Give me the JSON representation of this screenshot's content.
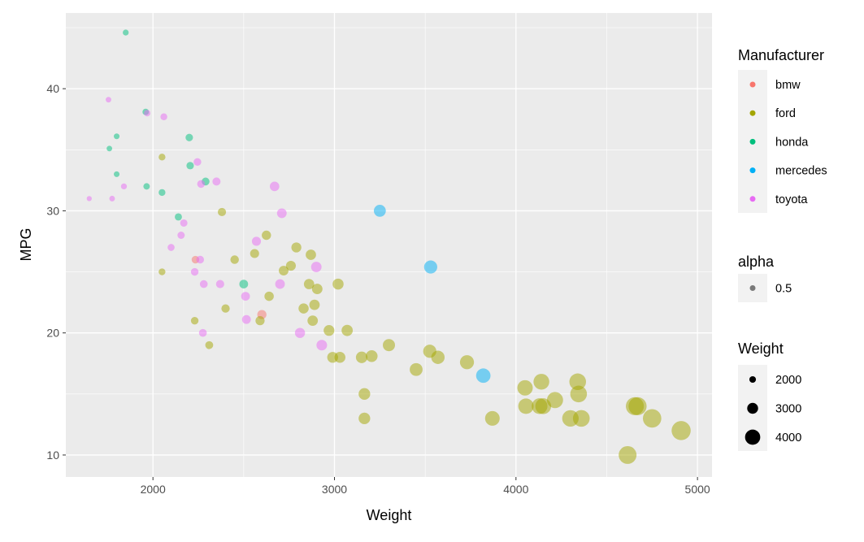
{
  "chart_data": {
    "type": "scatter",
    "xlabel": "Weight",
    "ylabel": "MPG",
    "xlim": [
      1520,
      5080
    ],
    "ylim": [
      8.2,
      46.2
    ],
    "x_ticks": [
      2000,
      3000,
      4000,
      5000
    ],
    "y_ticks": [
      10,
      20,
      30,
      40
    ],
    "grid": true,
    "point_alpha": 0.5,
    "size_scale": "Weight",
    "legend_placement": "right",
    "legends": {
      "color": {
        "title": "Manufacturer",
        "entries": [
          {
            "label": "bmw",
            "color": "#F8766D"
          },
          {
            "label": "ford",
            "color": "#A3A500"
          },
          {
            "label": "honda",
            "color": "#00BF7D"
          },
          {
            "label": "mercedes",
            "color": "#00B0F6"
          },
          {
            "label": "toyota",
            "color": "#E76BF3"
          }
        ]
      },
      "alpha": {
        "title": "alpha",
        "entries": [
          {
            "label": "0.5"
          }
        ]
      },
      "size": {
        "title": "Weight",
        "entries": [
          {
            "label": "2000",
            "value": 2000
          },
          {
            "label": "3000",
            "value": 3000
          },
          {
            "label": "4000",
            "value": 4000
          }
        ]
      }
    },
    "series": [
      {
        "name": "bmw",
        "color": "#F8766D",
        "points": [
          {
            "x": 2234,
            "y": 26
          },
          {
            "x": 2600,
            "y": 21.5
          }
        ]
      },
      {
        "name": "ford",
        "color": "#A3A500",
        "points": [
          {
            "x": 2050,
            "y": 34.4
          },
          {
            "x": 2050,
            "y": 25
          },
          {
            "x": 2230,
            "y": 21
          },
          {
            "x": 2310,
            "y": 19
          },
          {
            "x": 2380,
            "y": 29.9
          },
          {
            "x": 2400,
            "y": 22
          },
          {
            "x": 2450,
            "y": 26
          },
          {
            "x": 2560,
            "y": 26.5
          },
          {
            "x": 2590,
            "y": 21
          },
          {
            "x": 2625,
            "y": 28
          },
          {
            "x": 2640,
            "y": 23
          },
          {
            "x": 2720,
            "y": 25.1
          },
          {
            "x": 2760,
            "y": 25.5
          },
          {
            "x": 2790,
            "y": 27
          },
          {
            "x": 2830,
            "y": 22
          },
          {
            "x": 2860,
            "y": 24
          },
          {
            "x": 2870,
            "y": 26.4
          },
          {
            "x": 2880,
            "y": 21
          },
          {
            "x": 2890,
            "y": 22.3
          },
          {
            "x": 2905,
            "y": 23.6
          },
          {
            "x": 2970,
            "y": 20.2
          },
          {
            "x": 2990,
            "y": 18
          },
          {
            "x": 3020,
            "y": 24
          },
          {
            "x": 3030,
            "y": 18
          },
          {
            "x": 3070,
            "y": 20.2
          },
          {
            "x": 3150,
            "y": 18
          },
          {
            "x": 3165,
            "y": 15
          },
          {
            "x": 3165,
            "y": 13
          },
          {
            "x": 3205,
            "y": 18.1
          },
          {
            "x": 3300,
            "y": 19
          },
          {
            "x": 3450,
            "y": 17
          },
          {
            "x": 3525,
            "y": 18.5
          },
          {
            "x": 3570,
            "y": 18
          },
          {
            "x": 3730,
            "y": 17.6
          },
          {
            "x": 3870,
            "y": 13
          },
          {
            "x": 4050,
            "y": 15.5
          },
          {
            "x": 4055,
            "y": 14
          },
          {
            "x": 4130,
            "y": 14
          },
          {
            "x": 4140,
            "y": 16
          },
          {
            "x": 4150,
            "y": 14
          },
          {
            "x": 4215,
            "y": 14.5
          },
          {
            "x": 4300,
            "y": 13
          },
          {
            "x": 4340,
            "y": 16
          },
          {
            "x": 4345,
            "y": 15
          },
          {
            "x": 4360,
            "y": 13
          },
          {
            "x": 4615,
            "y": 10
          },
          {
            "x": 4655,
            "y": 14
          },
          {
            "x": 4670,
            "y": 14
          },
          {
            "x": 4750,
            "y": 13
          },
          {
            "x": 4910,
            "y": 12
          }
        ]
      },
      {
        "name": "honda",
        "color": "#00BF7D",
        "points": [
          {
            "x": 1760,
            "y": 35.1
          },
          {
            "x": 1800,
            "y": 36.1
          },
          {
            "x": 1800,
            "y": 33
          },
          {
            "x": 1850,
            "y": 44.6
          },
          {
            "x": 1960,
            "y": 38.1
          },
          {
            "x": 1965,
            "y": 32
          },
          {
            "x": 2050,
            "y": 31.5
          },
          {
            "x": 2140,
            "y": 29.5
          },
          {
            "x": 2200,
            "y": 36
          },
          {
            "x": 2205,
            "y": 33.7
          },
          {
            "x": 2290,
            "y": 32.4
          },
          {
            "x": 2500,
            "y": 24
          }
        ]
      },
      {
        "name": "mercedes",
        "color": "#00B0F6",
        "points": [
          {
            "x": 3250,
            "y": 30
          },
          {
            "x": 3530,
            "y": 25.4
          },
          {
            "x": 3820,
            "y": 16.5
          }
        ]
      },
      {
        "name": "toyota",
        "color": "#E76BF3",
        "points": [
          {
            "x": 1649,
            "y": 31
          },
          {
            "x": 1755,
            "y": 39.1
          },
          {
            "x": 1775,
            "y": 31
          },
          {
            "x": 1840,
            "y": 32
          },
          {
            "x": 1968,
            "y": 38
          },
          {
            "x": 2060,
            "y": 37.7
          },
          {
            "x": 2100,
            "y": 27
          },
          {
            "x": 2155,
            "y": 28
          },
          {
            "x": 2170,
            "y": 29
          },
          {
            "x": 2230,
            "y": 25
          },
          {
            "x": 2245,
            "y": 34
          },
          {
            "x": 2260,
            "y": 26
          },
          {
            "x": 2265,
            "y": 32.2
          },
          {
            "x": 2275,
            "y": 20
          },
          {
            "x": 2280,
            "y": 24
          },
          {
            "x": 2350,
            "y": 32.4
          },
          {
            "x": 2370,
            "y": 24
          },
          {
            "x": 2510,
            "y": 23
          },
          {
            "x": 2515,
            "y": 21.1
          },
          {
            "x": 2570,
            "y": 27.5
          },
          {
            "x": 2670,
            "y": 32
          },
          {
            "x": 2700,
            "y": 24
          },
          {
            "x": 2710,
            "y": 29.8
          },
          {
            "x": 2810,
            "y": 20
          },
          {
            "x": 2900,
            "y": 25.4
          },
          {
            "x": 2930,
            "y": 19
          }
        ]
      }
    ]
  }
}
